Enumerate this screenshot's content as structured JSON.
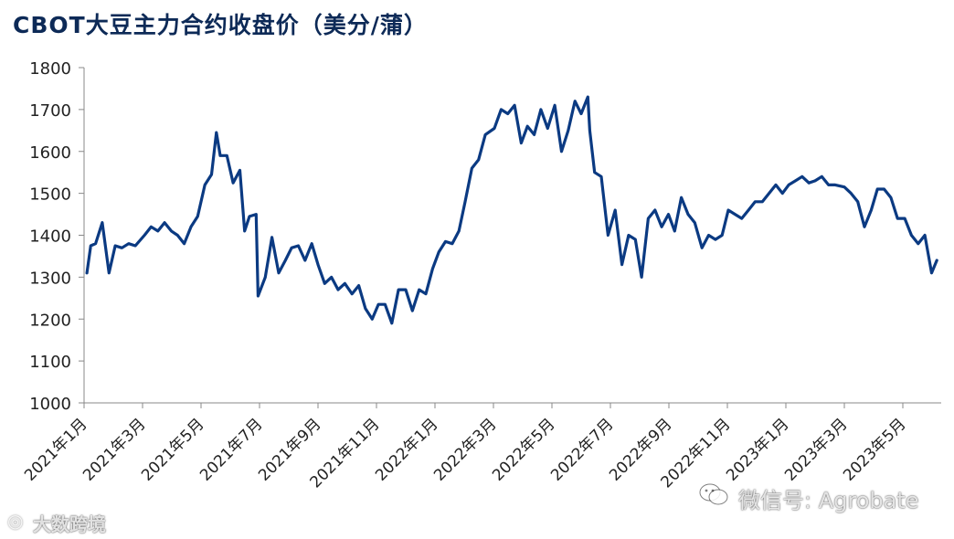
{
  "title": "CBOT大豆主力合约收盘价（美分/蒲）",
  "watermark_left": "大数跨境",
  "watermark_right": "微信号: Agrobate",
  "colors": {
    "line": "#0b3a82",
    "axis": "#888888"
  },
  "icons": [
    "wechat-icon",
    "logo-icon"
  ],
  "chart_data": {
    "type": "line",
    "title": "CBOT大豆主力合约收盘价（美分/蒲）",
    "xlabel": "",
    "ylabel": "",
    "ylim": [
      1000,
      1800
    ],
    "yticks": [
      1000,
      1100,
      1200,
      1300,
      1400,
      1500,
      1600,
      1700,
      1800
    ],
    "xlim": [
      "2021-01",
      "2023-06"
    ],
    "xtick_labels": [
      "2021年1月",
      "2021年3月",
      "2021年5月",
      "2021年7月",
      "2021年9月",
      "2021年11月",
      "2022年1月",
      "2022年3月",
      "2022年5月",
      "2022年7月",
      "2022年9月",
      "2022年11月",
      "2023年1月",
      "2023年3月",
      "2023年5月"
    ],
    "grid": false,
    "legend": "none",
    "series": [
      {
        "x": [
          "2021-01-04",
          "2021-01-08",
          "2021-01-13",
          "2021-01-20",
          "2021-01-27",
          "2021-02-03",
          "2021-02-10",
          "2021-02-17",
          "2021-02-24",
          "2021-03-03",
          "2021-03-10",
          "2021-03-17",
          "2021-03-24",
          "2021-03-31",
          "2021-04-07",
          "2021-04-14",
          "2021-04-21",
          "2021-04-28",
          "2021-05-05",
          "2021-05-12",
          "2021-05-17",
          "2021-05-21",
          "2021-05-28",
          "2021-06-04",
          "2021-06-11",
          "2021-06-16",
          "2021-06-21",
          "2021-06-28",
          "2021-06-30",
          "2021-07-07",
          "2021-07-14",
          "2021-07-21",
          "2021-07-28",
          "2021-08-04",
          "2021-08-11",
          "2021-08-18",
          "2021-08-25",
          "2021-09-01",
          "2021-09-08",
          "2021-09-15",
          "2021-09-22",
          "2021-09-29",
          "2021-10-06",
          "2021-10-13",
          "2021-10-20",
          "2021-10-27",
          "2021-11-03",
          "2021-11-10",
          "2021-11-17",
          "2021-11-24",
          "2021-12-01",
          "2021-12-08",
          "2021-12-15",
          "2021-12-22",
          "2021-12-29",
          "2022-01-05",
          "2022-01-12",
          "2022-01-19",
          "2022-01-26",
          "2022-02-02",
          "2022-02-09",
          "2022-02-16",
          "2022-02-23",
          "2022-03-02",
          "2022-03-09",
          "2022-03-16",
          "2022-03-23",
          "2022-03-30",
          "2022-04-06",
          "2022-04-13",
          "2022-04-20",
          "2022-04-27",
          "2022-05-04",
          "2022-05-11",
          "2022-05-18",
          "2022-05-25",
          "2022-06-01",
          "2022-06-08",
          "2022-06-10",
          "2022-06-15",
          "2022-06-22",
          "2022-06-29",
          "2022-07-06",
          "2022-07-13",
          "2022-07-20",
          "2022-07-27",
          "2022-08-03",
          "2022-08-10",
          "2022-08-17",
          "2022-08-24",
          "2022-08-31",
          "2022-09-07",
          "2022-09-14",
          "2022-09-21",
          "2022-09-28",
          "2022-10-05",
          "2022-10-12",
          "2022-10-19",
          "2022-10-26",
          "2022-11-02",
          "2022-11-09",
          "2022-11-16",
          "2022-11-23",
          "2022-11-30",
          "2022-12-07",
          "2022-12-14",
          "2022-12-21",
          "2022-12-28",
          "2023-01-04",
          "2023-01-11",
          "2023-01-18",
          "2023-01-25",
          "2023-02-01",
          "2023-02-08",
          "2023-02-15",
          "2023-02-22",
          "2023-03-01",
          "2023-03-08",
          "2023-03-15",
          "2023-03-22",
          "2023-03-29",
          "2023-04-05",
          "2023-04-12",
          "2023-04-19",
          "2023-04-26",
          "2023-05-03",
          "2023-05-10",
          "2023-05-17",
          "2023-05-24",
          "2023-05-31",
          "2023-06-06"
        ],
        "values": [
          1310,
          1375,
          1380,
          1430,
          1310,
          1375,
          1370,
          1380,
          1375,
          1400,
          1420,
          1410,
          1430,
          1410,
          1400,
          1380,
          1420,
          1445,
          1520,
          1545,
          1645,
          1590,
          1590,
          1525,
          1555,
          1410,
          1445,
          1450,
          1255,
          1300,
          1395,
          1310,
          1340,
          1370,
          1375,
          1340,
          1380,
          1330,
          1285,
          1300,
          1270,
          1285,
          1260,
          1280,
          1225,
          1200,
          1235,
          1235,
          1190,
          1270,
          1270,
          1220,
          1270,
          1260,
          1320,
          1360,
          1385,
          1380,
          1410,
          1480,
          1560,
          1580,
          1640,
          1655,
          1700,
          1690,
          1710,
          1620,
          1660,
          1640,
          1700,
          1655,
          1710,
          1600,
          1650,
          1720,
          1690,
          1730,
          1650,
          1550,
          1540,
          1400,
          1460,
          1330,
          1400,
          1390,
          1300,
          1440,
          1460,
          1420,
          1450,
          1410,
          1490,
          1450,
          1430,
          1370,
          1400,
          1390,
          1400,
          1460,
          1450,
          1440,
          1460,
          1480,
          1480,
          1500,
          1520,
          1500,
          1520,
          1530,
          1540,
          1525,
          1530,
          1540,
          1520,
          1520,
          1515,
          1500,
          1480,
          1420,
          1460,
          1510,
          1510,
          1490,
          1440,
          1440,
          1400,
          1380,
          1400,
          1310,
          1340
        ]
      }
    ]
  }
}
